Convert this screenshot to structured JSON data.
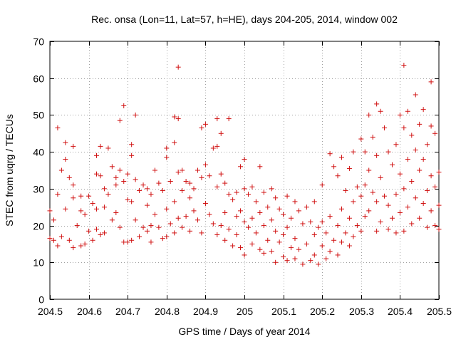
{
  "chart_data": {
    "type": "scatter",
    "title": "Rec. onsa (Lon=11, Lat=57, h=HE), days 204-205, 2014, window 002",
    "xlabel": "GPS time / Days of year 2014",
    "ylabel": "STEC from uqrg / TECUs",
    "xlim": [
      204.5,
      205.5
    ],
    "ylim": [
      0,
      70
    ],
    "xticks": [
      "204.5",
      "204.6",
      "204.7",
      "204.8",
      "204.9",
      "205",
      "205.1",
      "205.2",
      "205.3",
      "205.4",
      "205.5"
    ],
    "xtick_values": [
      204.5,
      204.6,
      204.7,
      204.8,
      204.9,
      205.0,
      205.1,
      205.2,
      205.3,
      205.4,
      205.5
    ],
    "yticks": [
      "0",
      "10",
      "20",
      "30",
      "40",
      "50",
      "60",
      "70"
    ],
    "ytick_values": [
      0,
      10,
      20,
      30,
      40,
      50,
      60,
      70
    ],
    "grid": true,
    "marker": "+",
    "color": "#d01010",
    "series": [
      {
        "name": "STEC",
        "points": [
          [
            204.5,
            16.5
          ],
          [
            204.5,
            24.0
          ],
          [
            204.51,
            16.0
          ],
          [
            204.51,
            21.5
          ],
          [
            204.52,
            46.5
          ],
          [
            204.52,
            28.5
          ],
          [
            204.52,
            14.5
          ],
          [
            204.53,
            35.0
          ],
          [
            204.53,
            17.0
          ],
          [
            204.54,
            42.5
          ],
          [
            204.54,
            38.0
          ],
          [
            204.54,
            24.5
          ],
          [
            204.55,
            33.0
          ],
          [
            204.55,
            16.0
          ],
          [
            204.56,
            41.5
          ],
          [
            204.56,
            31.0
          ],
          [
            204.56,
            27.5
          ],
          [
            204.56,
            14.0
          ],
          [
            204.57,
            20.0
          ],
          [
            204.58,
            28.0
          ],
          [
            204.58,
            24.0
          ],
          [
            204.58,
            14.5
          ],
          [
            204.59,
            23.0
          ],
          [
            204.59,
            15.0
          ],
          [
            204.6,
            28.0
          ],
          [
            204.6,
            18.5
          ],
          [
            204.61,
            26.0
          ],
          [
            204.61,
            16.0
          ],
          [
            204.62,
            39.0
          ],
          [
            204.62,
            34.0
          ],
          [
            204.62,
            24.5
          ],
          [
            204.62,
            19.0
          ],
          [
            204.63,
            41.5
          ],
          [
            204.63,
            33.5
          ],
          [
            204.63,
            17.5
          ],
          [
            204.64,
            30.0
          ],
          [
            204.64,
            25.0
          ],
          [
            204.64,
            18.0
          ],
          [
            204.65,
            41.0
          ],
          [
            204.65,
            28.5
          ],
          [
            204.66,
            36.0
          ],
          [
            204.66,
            21.5
          ],
          [
            204.67,
            33.0
          ],
          [
            204.67,
            31.0
          ],
          [
            204.67,
            23.5
          ],
          [
            204.68,
            48.5
          ],
          [
            204.68,
            35.0
          ],
          [
            204.68,
            19.5
          ],
          [
            204.69,
            52.5
          ],
          [
            204.69,
            32.0
          ],
          [
            204.69,
            15.5
          ],
          [
            204.7,
            34.0
          ],
          [
            204.7,
            27.0
          ],
          [
            204.7,
            15.5
          ],
          [
            204.71,
            42.0
          ],
          [
            204.71,
            39.0
          ],
          [
            204.71,
            26.5
          ],
          [
            204.71,
            16.0
          ],
          [
            204.72,
            50.0
          ],
          [
            204.72,
            32.5
          ],
          [
            204.72,
            21.5
          ],
          [
            204.73,
            29.5
          ],
          [
            204.73,
            17.0
          ],
          [
            204.74,
            31.0
          ],
          [
            204.74,
            19.5
          ],
          [
            204.75,
            30.0
          ],
          [
            204.75,
            25.5
          ],
          [
            204.75,
            18.5
          ],
          [
            204.76,
            28.5
          ],
          [
            204.76,
            20.0
          ],
          [
            204.76,
            15.5
          ],
          [
            204.77,
            35.0
          ],
          [
            204.77,
            23.0
          ],
          [
            204.78,
            31.5
          ],
          [
            204.78,
            19.5
          ],
          [
            204.79,
            29.5
          ],
          [
            204.79,
            16.5
          ],
          [
            204.8,
            38.5
          ],
          [
            204.8,
            41.0
          ],
          [
            204.8,
            24.5
          ],
          [
            204.8,
            17.0
          ],
          [
            204.81,
            32.0
          ],
          [
            204.81,
            20.5
          ],
          [
            204.82,
            49.5
          ],
          [
            204.82,
            42.5
          ],
          [
            204.82,
            26.5
          ],
          [
            204.82,
            18.0
          ],
          [
            204.83,
            63.0
          ],
          [
            204.83,
            49.0
          ],
          [
            204.83,
            34.5
          ],
          [
            204.83,
            22.0
          ],
          [
            204.84,
            35.0
          ],
          [
            204.84,
            29.5
          ],
          [
            204.84,
            19.5
          ],
          [
            204.85,
            32.0
          ],
          [
            204.85,
            22.5
          ],
          [
            204.86,
            31.5
          ],
          [
            204.86,
            27.5
          ],
          [
            204.86,
            18.5
          ],
          [
            204.87,
            30.0
          ],
          [
            204.87,
            24.0
          ],
          [
            204.88,
            35.0
          ],
          [
            204.88,
            21.5
          ],
          [
            204.89,
            46.5
          ],
          [
            204.89,
            33.0
          ],
          [
            204.89,
            18.0
          ],
          [
            204.9,
            47.5
          ],
          [
            204.9,
            36.5
          ],
          [
            204.9,
            26.0
          ],
          [
            204.91,
            33.5
          ],
          [
            204.91,
            23.0
          ],
          [
            204.92,
            41.0
          ],
          [
            204.92,
            20.5
          ],
          [
            204.93,
            49.0
          ],
          [
            204.93,
            41.5
          ],
          [
            204.93,
            30.5
          ],
          [
            204.93,
            17.5
          ],
          [
            204.94,
            45.0
          ],
          [
            204.94,
            34.0
          ],
          [
            204.94,
            20.0
          ],
          [
            204.95,
            31.5
          ],
          [
            204.95,
            23.5
          ],
          [
            204.95,
            16.0
          ],
          [
            204.96,
            49.0
          ],
          [
            204.96,
            28.5
          ],
          [
            204.96,
            19.0
          ],
          [
            204.97,
            27.0
          ],
          [
            204.97,
            14.5
          ],
          [
            204.98,
            29.0
          ],
          [
            204.98,
            22.5
          ],
          [
            204.98,
            17.5
          ],
          [
            204.99,
            36.0
          ],
          [
            204.99,
            24.0
          ],
          [
            204.99,
            14.0
          ],
          [
            205.0,
            38.0
          ],
          [
            205.0,
            30.0
          ],
          [
            205.0,
            21.0
          ],
          [
            205.0,
            12.0
          ],
          [
            205.01,
            28.5
          ],
          [
            205.01,
            19.5
          ],
          [
            205.02,
            30.5
          ],
          [
            205.02,
            22.0
          ],
          [
            205.02,
            15.0
          ],
          [
            205.03,
            26.5
          ],
          [
            205.03,
            18.0
          ],
          [
            205.04,
            36.0
          ],
          [
            205.04,
            23.5
          ],
          [
            205.04,
            13.5
          ],
          [
            205.05,
            29.0
          ],
          [
            205.05,
            20.0
          ],
          [
            205.05,
            12.5
          ],
          [
            205.06,
            25.0
          ],
          [
            205.06,
            16.0
          ],
          [
            205.07,
            30.0
          ],
          [
            205.07,
            21.5
          ],
          [
            205.07,
            13.0
          ],
          [
            205.08,
            27.5
          ],
          [
            205.08,
            18.5
          ],
          [
            205.08,
            10.0
          ],
          [
            205.09,
            24.5
          ],
          [
            205.09,
            15.5
          ],
          [
            205.1,
            23.0
          ],
          [
            205.1,
            11.5
          ],
          [
            205.1,
            17.5
          ],
          [
            205.11,
            28.0
          ],
          [
            205.11,
            19.5
          ],
          [
            205.11,
            10.5
          ],
          [
            205.12,
            22.0
          ],
          [
            205.12,
            14.0
          ],
          [
            205.13,
            26.5
          ],
          [
            205.13,
            16.5
          ],
          [
            205.13,
            11.0
          ],
          [
            205.14,
            24.0
          ],
          [
            205.14,
            13.5
          ],
          [
            205.15,
            20.5
          ],
          [
            205.15,
            9.5
          ],
          [
            205.16,
            25.0
          ],
          [
            205.16,
            15.0
          ],
          [
            205.17,
            21.0
          ],
          [
            205.17,
            10.5
          ],
          [
            205.18,
            26.5
          ],
          [
            205.18,
            17.5
          ],
          [
            205.18,
            12.0
          ],
          [
            205.19,
            19.5
          ],
          [
            205.19,
            9.5
          ],
          [
            205.2,
            31.0
          ],
          [
            205.2,
            21.0
          ],
          [
            205.2,
            14.5
          ],
          [
            205.21,
            18.0
          ],
          [
            205.21,
            11.0
          ],
          [
            205.22,
            39.5
          ],
          [
            205.22,
            22.5
          ],
          [
            205.22,
            13.0
          ],
          [
            205.23,
            36.0
          ],
          [
            205.23,
            16.0
          ],
          [
            205.24,
            33.5
          ],
          [
            205.24,
            20.0
          ],
          [
            205.24,
            12.0
          ],
          [
            205.25,
            38.5
          ],
          [
            205.25,
            24.5
          ],
          [
            205.25,
            15.5
          ],
          [
            205.26,
            29.5
          ],
          [
            205.26,
            18.0
          ],
          [
            205.27,
            35.5
          ],
          [
            205.27,
            22.0
          ],
          [
            205.27,
            14.5
          ],
          [
            205.28,
            40.0
          ],
          [
            205.28,
            26.5
          ],
          [
            205.28,
            17.0
          ],
          [
            205.29,
            30.5
          ],
          [
            205.29,
            20.0
          ],
          [
            205.3,
            43.5
          ],
          [
            205.3,
            28.0
          ],
          [
            205.3,
            18.5
          ],
          [
            205.31,
            40.0
          ],
          [
            205.31,
            31.0
          ],
          [
            205.31,
            22.5
          ],
          [
            205.32,
            50.0
          ],
          [
            205.32,
            35.0
          ],
          [
            205.32,
            24.0
          ],
          [
            205.33,
            44.0
          ],
          [
            205.33,
            29.0
          ],
          [
            205.34,
            53.0
          ],
          [
            205.34,
            39.0
          ],
          [
            205.34,
            26.5
          ],
          [
            205.34,
            18.5
          ],
          [
            205.35,
            51.0
          ],
          [
            205.35,
            33.0
          ],
          [
            205.35,
            21.0
          ],
          [
            205.36,
            46.5
          ],
          [
            205.36,
            28.0
          ],
          [
            205.37,
            40.0
          ],
          [
            205.37,
            25.5
          ],
          [
            205.37,
            19.0
          ],
          [
            205.38,
            36.5
          ],
          [
            205.38,
            22.0
          ],
          [
            205.39,
            42.0
          ],
          [
            205.39,
            28.5
          ],
          [
            205.39,
            18.0
          ],
          [
            205.4,
            50.0
          ],
          [
            205.4,
            34.0
          ],
          [
            205.4,
            23.5
          ],
          [
            205.41,
            63.5
          ],
          [
            205.41,
            46.5
          ],
          [
            205.41,
            30.0
          ],
          [
            205.41,
            18.5
          ],
          [
            205.42,
            51.0
          ],
          [
            205.42,
            38.0
          ],
          [
            205.42,
            25.0
          ],
          [
            205.43,
            44.5
          ],
          [
            205.43,
            32.0
          ],
          [
            205.43,
            20.5
          ],
          [
            205.44,
            55.5
          ],
          [
            205.44,
            40.5
          ],
          [
            205.44,
            27.5
          ],
          [
            205.45,
            47.5
          ],
          [
            205.45,
            35.0
          ],
          [
            205.45,
            22.0
          ],
          [
            205.46,
            51.5
          ],
          [
            205.46,
            38.0
          ],
          [
            205.46,
            26.0
          ],
          [
            205.47,
            42.0
          ],
          [
            205.47,
            29.5
          ],
          [
            205.47,
            19.5
          ],
          [
            205.48,
            59.0
          ],
          [
            205.48,
            47.0
          ],
          [
            205.48,
            33.5
          ],
          [
            205.48,
            24.0
          ],
          [
            205.49,
            45.0
          ],
          [
            205.49,
            30.5
          ],
          [
            205.49,
            20.0
          ],
          [
            205.5,
            34.5
          ],
          [
            205.5,
            25.5
          ],
          [
            205.5,
            19.0
          ]
        ]
      }
    ]
  }
}
